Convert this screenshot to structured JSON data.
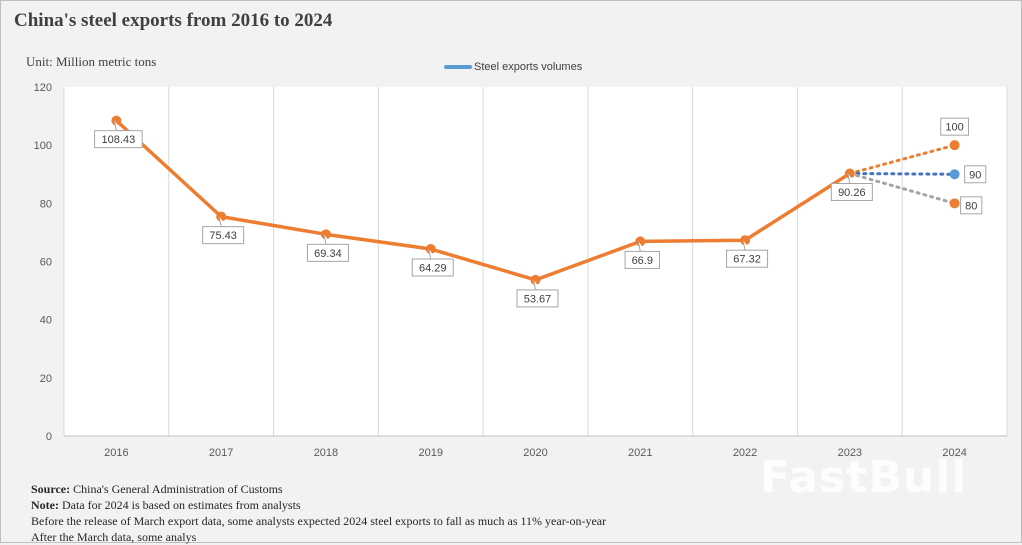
{
  "colors": {
    "line": "#ed7d31",
    "estimate_mid": "#4472c4",
    "estimate_low": "#a5a5a5",
    "marker_mid": "#5b9bd5",
    "grid": "#d9d9d9"
  },
  "legend": {
    "label": "Steel exports volumes"
  },
  "footnotes": {
    "source_label": "Source:",
    "source_text": " China's General Administration of Customs",
    "note_label": "Note:",
    "note_text": " Data for 2024  is based on estimates from  analysts",
    "line3": "Before  the release  of March export  data,  some analysts expected 2024  steel exports to fall  as much as 11% year-on-year",
    "line4": "After the March data, some analys"
  },
  "watermark": {
    "text": "FastBull"
  },
  "chart_data": {
    "type": "line",
    "title": "China's steel exports from 2016 to 2024",
    "unit_label": "Unit: Million metric tons",
    "categories": [
      "2016",
      "2017",
      "2018",
      "2019",
      "2020",
      "2021",
      "2022",
      "2023",
      "2024"
    ],
    "ylim": [
      0,
      120
    ],
    "yticks": [
      0,
      20,
      40,
      60,
      80,
      100,
      120
    ],
    "grid": "vertical",
    "series": [
      {
        "name": "Steel exports volumes",
        "x": [
          "2016",
          "2017",
          "2018",
          "2019",
          "2020",
          "2021",
          "2022",
          "2023"
        ],
        "values": [
          108.43,
          75.43,
          69.34,
          64.29,
          53.67,
          66.9,
          67.32,
          90.26
        ],
        "labels": [
          "108.43",
          "75.43",
          "69.34",
          "64.29",
          "53.67",
          "66.9",
          "67.32",
          "90.26"
        ]
      }
    ],
    "estimates_2024": [
      {
        "from": "2023",
        "to": "2024",
        "start": 90.26,
        "value": 100,
        "label": "100",
        "style": "high"
      },
      {
        "from": "2023",
        "to": "2024",
        "start": 90.26,
        "value": 90,
        "label": "90",
        "style": "mid"
      },
      {
        "from": "2023",
        "to": "2024",
        "start": 90.26,
        "value": 80,
        "label": "80",
        "style": "low"
      }
    ]
  }
}
